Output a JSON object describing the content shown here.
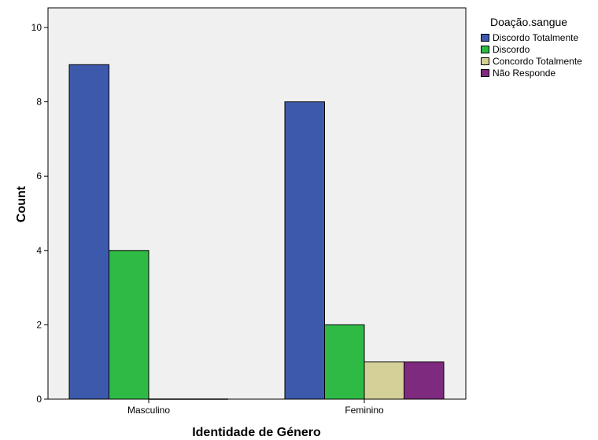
{
  "chart_data": {
    "type": "bar",
    "xlabel": "Identidade de Género",
    "ylabel": "Count",
    "ylim": [
      0,
      10
    ],
    "yticks": [
      0,
      2,
      4,
      6,
      8,
      10
    ],
    "categories": [
      "Masculino",
      "Feminino"
    ],
    "legend_title": "Doação.sangue",
    "legend_position": "top-right outside",
    "plot_background": "#f0f0f0",
    "series": [
      {
        "name": "Discordo Totalmente",
        "color": "#3d59ab",
        "values": [
          9,
          8
        ]
      },
      {
        "name": "Discordo",
        "color": "#2fba45",
        "values": [
          4,
          2
        ]
      },
      {
        "name": "Concordo Totalmente",
        "color": "#d5cf98",
        "values": [
          0,
          1
        ]
      },
      {
        "name": "Não Responde",
        "color": "#7e2a7e",
        "values": [
          0,
          1
        ]
      }
    ]
  }
}
